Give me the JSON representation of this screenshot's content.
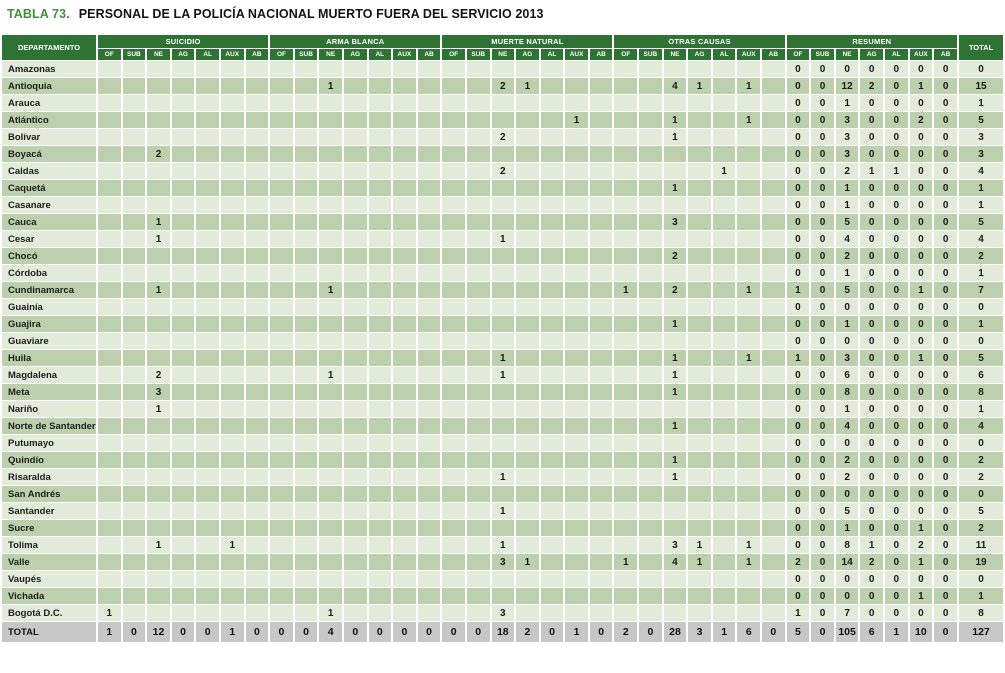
{
  "title": {
    "label": "TABLA 73.",
    "text": "PERSONAL DE LA POLICÍA NACIONAL MUERTO FUERA DEL SERVICIO 2013"
  },
  "colors": {
    "header_green": "#2e7234",
    "title_green": "#44903c",
    "row_light": "#e2ead9",
    "row_dark": "#bdd0ae",
    "total_row_gray": "#c7c7c7"
  },
  "table": {
    "department_header": "DEPARTAMENTO",
    "total_header": "TOTAL",
    "groups": [
      {
        "label": "SUICIDIO",
        "key": "s"
      },
      {
        "label": "ARMA BLANCA",
        "key": "ab"
      },
      {
        "label": "MUERTE NATURAL",
        "key": "mn"
      },
      {
        "label": "OTRAS CAUSAS",
        "key": "oc"
      },
      {
        "label": "RESUMEN",
        "key": "res"
      }
    ],
    "subcolumns": [
      "OF",
      "SUB",
      "NE",
      "AG",
      "AL",
      "AUX",
      "AB"
    ],
    "rows": [
      {
        "name": "Amazonas",
        "res": [
          "0",
          "0",
          "0",
          "0",
          "0",
          "0",
          "0"
        ],
        "total": "0"
      },
      {
        "name": "Antioquia",
        "ab": [
          "",
          "",
          "1",
          "",
          "",
          "",
          ""
        ],
        "mn": [
          "",
          "",
          "2",
          "1",
          "",
          "",
          ""
        ],
        "oc": [
          "",
          "",
          "4",
          "1",
          "",
          "1",
          ""
        ],
        "res": [
          "0",
          "0",
          "12",
          "2",
          "0",
          "1",
          "0"
        ],
        "total": "15"
      },
      {
        "name": "Arauca",
        "res": [
          "0",
          "0",
          "1",
          "0",
          "0",
          "0",
          "0"
        ],
        "total": "1"
      },
      {
        "name": "Atlántico",
        "mn": [
          "",
          "",
          "",
          "",
          "",
          "1",
          ""
        ],
        "oc": [
          "",
          "",
          "1",
          "",
          "",
          "1",
          ""
        ],
        "res": [
          "0",
          "0",
          "3",
          "0",
          "0",
          "2",
          "0"
        ],
        "total": "5"
      },
      {
        "name": "Bolívar",
        "mn": [
          "",
          "",
          "2",
          "",
          "",
          "",
          ""
        ],
        "oc": [
          "",
          "",
          "1",
          "",
          "",
          "",
          ""
        ],
        "res": [
          "0",
          "0",
          "3",
          "0",
          "0",
          "0",
          "0"
        ],
        "total": "3"
      },
      {
        "name": "Boyacá",
        "s": [
          "",
          "",
          "2",
          "",
          "",
          "",
          ""
        ],
        "res": [
          "0",
          "0",
          "3",
          "0",
          "0",
          "0",
          "0"
        ],
        "total": "3"
      },
      {
        "name": "Caldas",
        "mn": [
          "",
          "",
          "2",
          "",
          "",
          "",
          ""
        ],
        "oc": [
          "",
          "",
          "",
          "",
          "1",
          "",
          ""
        ],
        "res": [
          "0",
          "0",
          "2",
          "1",
          "1",
          "0",
          "0"
        ],
        "total": "4"
      },
      {
        "name": "Caquetá",
        "oc": [
          "",
          "",
          "1",
          "",
          "",
          "",
          ""
        ],
        "res": [
          "0",
          "0",
          "1",
          "0",
          "0",
          "0",
          "0"
        ],
        "total": "1"
      },
      {
        "name": "Casanare",
        "res": [
          "0",
          "0",
          "1",
          "0",
          "0",
          "0",
          "0"
        ],
        "total": "1"
      },
      {
        "name": "Cauca",
        "s": [
          "",
          "",
          "1",
          "",
          "",
          "",
          ""
        ],
        "oc": [
          "",
          "",
          "3",
          "",
          "",
          "",
          ""
        ],
        "res": [
          "0",
          "0",
          "5",
          "0",
          "0",
          "0",
          "0"
        ],
        "total": "5"
      },
      {
        "name": "Cesar",
        "s": [
          "",
          "",
          "1",
          "",
          "",
          "",
          ""
        ],
        "mn": [
          "",
          "",
          "1",
          "",
          "",
          "",
          ""
        ],
        "res": [
          "0",
          "0",
          "4",
          "0",
          "0",
          "0",
          "0"
        ],
        "total": "4"
      },
      {
        "name": "Chocó",
        "oc": [
          "",
          "",
          "2",
          "",
          "",
          "",
          ""
        ],
        "res": [
          "0",
          "0",
          "2",
          "0",
          "0",
          "0",
          "0"
        ],
        "total": "2"
      },
      {
        "name": "Córdoba",
        "res": [
          "0",
          "0",
          "1",
          "0",
          "0",
          "0",
          "0"
        ],
        "total": "1"
      },
      {
        "name": "Cundinamarca",
        "s": [
          "",
          "",
          "1",
          "",
          "",
          "",
          ""
        ],
        "ab": [
          "",
          "",
          "1",
          "",
          "",
          "",
          ""
        ],
        "oc": [
          "1",
          "",
          "2",
          "",
          "",
          "1",
          ""
        ],
        "res": [
          "1",
          "0",
          "5",
          "0",
          "0",
          "1",
          "0"
        ],
        "total": "7"
      },
      {
        "name": "Guainía",
        "res": [
          "0",
          "0",
          "0",
          "0",
          "0",
          "0",
          "0"
        ],
        "total": "0"
      },
      {
        "name": "Guajira",
        "oc": [
          "",
          "",
          "1",
          "",
          "",
          "",
          ""
        ],
        "res": [
          "0",
          "0",
          "1",
          "0",
          "0",
          "0",
          "0"
        ],
        "total": "1"
      },
      {
        "name": "Guaviare",
        "res": [
          "0",
          "0",
          "0",
          "0",
          "0",
          "0",
          "0"
        ],
        "total": "0"
      },
      {
        "name": "Huila",
        "mn": [
          "",
          "",
          "1",
          "",
          "",
          "",
          ""
        ],
        "oc": [
          "",
          "",
          "1",
          "",
          "",
          "1",
          ""
        ],
        "res": [
          "1",
          "0",
          "3",
          "0",
          "0",
          "1",
          "0"
        ],
        "total": "5"
      },
      {
        "name": "Magdalena",
        "s": [
          "",
          "",
          "2",
          "",
          "",
          "",
          ""
        ],
        "ab": [
          "",
          "",
          "1",
          "",
          "",
          "",
          ""
        ],
        "mn": [
          "",
          "",
          "1",
          "",
          "",
          "",
          ""
        ],
        "oc": [
          "",
          "",
          "1",
          "",
          "",
          "",
          ""
        ],
        "res": [
          "0",
          "0",
          "6",
          "0",
          "0",
          "0",
          "0"
        ],
        "total": "6"
      },
      {
        "name": "Meta",
        "s": [
          "",
          "",
          "3",
          "",
          "",
          "",
          ""
        ],
        "oc": [
          "",
          "",
          "1",
          "",
          "",
          "",
          ""
        ],
        "res": [
          "0",
          "0",
          "8",
          "0",
          "0",
          "0",
          "0"
        ],
        "total": "8"
      },
      {
        "name": "Nariño",
        "s": [
          "",
          "",
          "1",
          "",
          "",
          "",
          ""
        ],
        "res": [
          "0",
          "0",
          "1",
          "0",
          "0",
          "0",
          "0"
        ],
        "total": "1"
      },
      {
        "name": "Norte de Santander",
        "oc": [
          "",
          "",
          "1",
          "",
          "",
          "",
          ""
        ],
        "res": [
          "0",
          "0",
          "4",
          "0",
          "0",
          "0",
          "0"
        ],
        "total": "4"
      },
      {
        "name": "Putumayo",
        "res": [
          "0",
          "0",
          "0",
          "0",
          "0",
          "0",
          "0"
        ],
        "total": "0"
      },
      {
        "name": "Quindío",
        "oc": [
          "",
          "",
          "1",
          "",
          "",
          "",
          ""
        ],
        "res": [
          "0",
          "0",
          "2",
          "0",
          "0",
          "0",
          "0"
        ],
        "total": "2"
      },
      {
        "name": "Risaralda",
        "mn": [
          "",
          "",
          "1",
          "",
          "",
          "",
          ""
        ],
        "oc": [
          "",
          "",
          "1",
          "",
          "",
          "",
          ""
        ],
        "res": [
          "0",
          "0",
          "2",
          "0",
          "0",
          "0",
          "0"
        ],
        "total": "2"
      },
      {
        "name": "San Andrés",
        "res": [
          "0",
          "0",
          "0",
          "0",
          "0",
          "0",
          "0"
        ],
        "total": "0"
      },
      {
        "name": "Santander",
        "mn": [
          "",
          "",
          "1",
          "",
          "",
          "",
          ""
        ],
        "res": [
          "0",
          "0",
          "5",
          "0",
          "0",
          "0",
          "0"
        ],
        "total": "5"
      },
      {
        "name": "Sucre",
        "res": [
          "0",
          "0",
          "1",
          "0",
          "0",
          "1",
          "0"
        ],
        "total": "2"
      },
      {
        "name": "Tolima",
        "s": [
          "",
          "",
          "1",
          "",
          "",
          "1",
          ""
        ],
        "mn": [
          "",
          "",
          "1",
          "",
          "",
          "",
          ""
        ],
        "oc": [
          "",
          "",
          "3",
          "1",
          "",
          "1",
          ""
        ],
        "res": [
          "0",
          "0",
          "8",
          "1",
          "0",
          "2",
          "0"
        ],
        "total": "11"
      },
      {
        "name": "Valle",
        "mn": [
          "",
          "",
          "3",
          "1",
          "",
          "",
          ""
        ],
        "oc": [
          "1",
          "",
          "4",
          "1",
          "",
          "1",
          ""
        ],
        "res": [
          "2",
          "0",
          "14",
          "2",
          "0",
          "1",
          "0"
        ],
        "total": "19"
      },
      {
        "name": "Vaupés",
        "res": [
          "0",
          "0",
          "0",
          "0",
          "0",
          "0",
          "0"
        ],
        "total": "0"
      },
      {
        "name": "Vichada",
        "res": [
          "0",
          "0",
          "0",
          "0",
          "0",
          "1",
          "0"
        ],
        "total": "1"
      },
      {
        "name": "Bogotá D.C.",
        "s": [
          "1",
          "",
          "",
          "",
          "",
          "",
          ""
        ],
        "ab": [
          "",
          "",
          "1",
          "",
          "",
          "",
          ""
        ],
        "mn": [
          "",
          "",
          "3",
          "",
          "",
          "",
          ""
        ],
        "res": [
          "1",
          "0",
          "7",
          "0",
          "0",
          "0",
          "0"
        ],
        "total": "8"
      }
    ],
    "total_row": {
      "name": "TOTAL",
      "s": [
        "1",
        "0",
        "12",
        "0",
        "0",
        "1",
        "0"
      ],
      "ab": [
        "0",
        "0",
        "4",
        "0",
        "0",
        "0",
        "0"
      ],
      "mn": [
        "0",
        "0",
        "18",
        "2",
        "0",
        "1",
        "0"
      ],
      "oc": [
        "2",
        "0",
        "28",
        "3",
        "1",
        "6",
        "0"
      ],
      "res": [
        "5",
        "0",
        "105",
        "6",
        "1",
        "10",
        "0"
      ],
      "total": "127"
    }
  }
}
